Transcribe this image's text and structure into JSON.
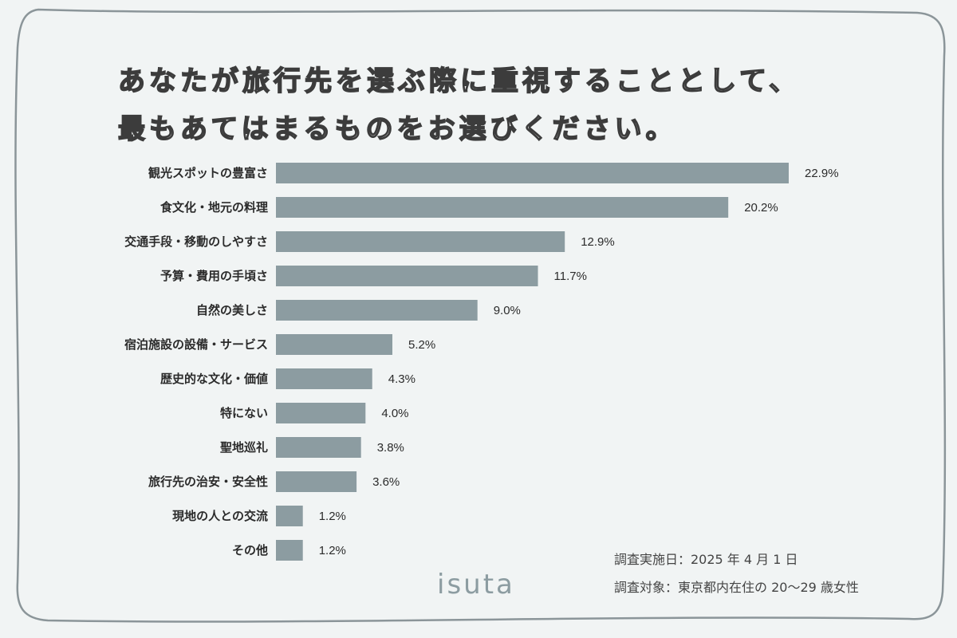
{
  "chart_data": {
    "type": "bar",
    "orientation": "horizontal",
    "title": "あなたが旅行先を選ぶ際に重視することとして、\n最もあてはまるものをお選びください。",
    "title_lines": [
      "あなたが旅行先を選ぶ際に重視することとして、",
      "最もあてはまるものをお選びください。"
    ],
    "categories": [
      "観光スポットの豊富さ",
      "食文化・地元の料理",
      "交通手段・移動のしやすさ",
      "予算・費用の手頃さ",
      "自然の美しさ",
      "宿泊施設の設備・サービス",
      "歴史的な文化・価値",
      "特にない",
      "聖地巡礼",
      "旅行先の治安・安全性",
      "現地の人との交流",
      "その他"
    ],
    "values": [
      22.9,
      20.2,
      12.9,
      11.7,
      9.0,
      5.2,
      4.3,
      4.0,
      3.8,
      3.6,
      1.2,
      1.2
    ],
    "value_labels": [
      "22.9%",
      "20.2%",
      "12.9%",
      "11.7%",
      "9.0%",
      "5.2%",
      "4.3%",
      "4.0%",
      "3.8%",
      "3.6%",
      "1.2%",
      "1.2%"
    ],
    "unit": "%",
    "xlabel": "",
    "ylabel": "",
    "xlim": [
      0,
      22.9
    ],
    "grid": false,
    "bar_color": "#8c9ca1"
  },
  "notes": {
    "date": "調査実施日：2025 年 4 月 1 日",
    "target": "調査対象：東京都内在住の 20〜29 歳女性"
  },
  "logo": "isuta",
  "colors": {
    "background": "#f1f4f4",
    "frame": "#8b9599",
    "bar": "#8c9ca1"
  }
}
